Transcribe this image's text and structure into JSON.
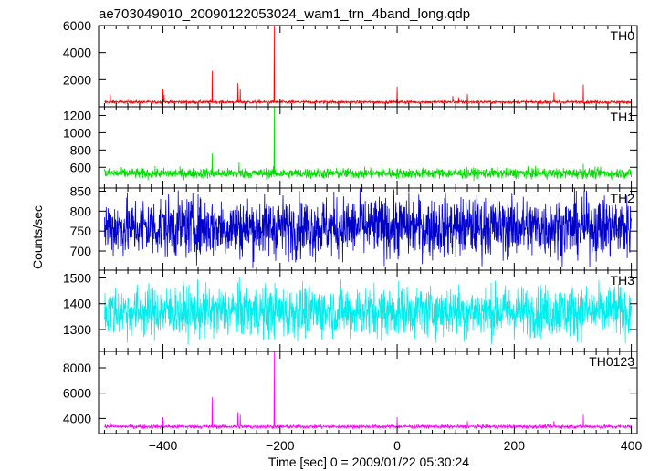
{
  "chart_data": {
    "type": "line",
    "title": "ae703049010_20090122053024_wam1_trn_4band_long.qdp",
    "xlabel": "Time [sec] 0 = 2009/01/22 05:30:24",
    "ylabel": "Counts/sec",
    "xlim": [
      -510,
      410
    ],
    "x_ticks": [
      -400,
      -200,
      0,
      200,
      400
    ],
    "x_tick_labels": [
      "−400",
      "−200",
      "0",
      "200",
      "400"
    ],
    "grid": false,
    "panels": [
      {
        "name": "TH0",
        "color": "#ff0000",
        "ylim": [
          0,
          6000
        ],
        "y_ticks": [
          2000,
          4000,
          6000
        ],
        "y_tick_labels": [
          "2000",
          "4000",
          "6000"
        ],
        "baseline": 350,
        "noise": 50,
        "spikes": [
          {
            "x": -490,
            "y": 900
          },
          {
            "x": -400,
            "y": 1350
          },
          {
            "x": -398,
            "y": 900
          },
          {
            "x": -316,
            "y": 2650
          },
          {
            "x": -272,
            "y": 1750
          },
          {
            "x": -268,
            "y": 1300
          },
          {
            "x": -210,
            "y": 6000
          },
          {
            "x": 0,
            "y": 1500
          },
          {
            "x": 95,
            "y": 800
          },
          {
            "x": 105,
            "y": 700
          },
          {
            "x": 120,
            "y": 950
          },
          {
            "x": 268,
            "y": 1050
          },
          {
            "x": 318,
            "y": 1650
          }
        ]
      },
      {
        "name": "TH1",
        "color": "#00dd00",
        "ylim": [
          360,
          1300
        ],
        "y_ticks": [
          600,
          800,
          1000,
          1200
        ],
        "y_tick_labels": [
          "600",
          "800",
          "1000",
          "1200"
        ],
        "baseline": 530,
        "noise": 30,
        "spikes": [
          {
            "x": -316,
            "y": 760
          },
          {
            "x": -270,
            "y": 660
          },
          {
            "x": -210,
            "y": 1300
          },
          {
            "x": 318,
            "y": 640
          }
        ]
      },
      {
        "name": "TH2",
        "color": "#0000cc",
        "ylim": [
          652,
          858
        ],
        "y_ticks": [
          700,
          750,
          800,
          850
        ],
        "y_tick_labels": [
          "700",
          "750",
          "800",
          "850"
        ],
        "baseline": 760,
        "noise": 38,
        "spikes": []
      },
      {
        "name": "TH3",
        "color": "#00eeee",
        "ylim": [
          1215,
          1530
        ],
        "y_ticks": [
          1300,
          1400,
          1500
        ],
        "y_tick_labels": [
          "1300",
          "1400",
          "1500"
        ],
        "baseline": 1370,
        "noise": 50,
        "spikes": []
      },
      {
        "name": "TH0123",
        "color": "#ff00ff",
        "ylim": [
          2800,
          9300
        ],
        "y_ticks": [
          4000,
          6000,
          8000
        ],
        "y_tick_labels": [
          "4000",
          "6000",
          "8000"
        ],
        "baseline": 3350,
        "noise": 70,
        "spikes": [
          {
            "x": -490,
            "y": 3700
          },
          {
            "x": -400,
            "y": 4100
          },
          {
            "x": -316,
            "y": 5700
          },
          {
            "x": -272,
            "y": 4500
          },
          {
            "x": -268,
            "y": 4300
          },
          {
            "x": -210,
            "y": 9300
          },
          {
            "x": 0,
            "y": 4100
          },
          {
            "x": 120,
            "y": 3800
          },
          {
            "x": 268,
            "y": 3800
          },
          {
            "x": 318,
            "y": 4300
          }
        ]
      }
    ]
  }
}
